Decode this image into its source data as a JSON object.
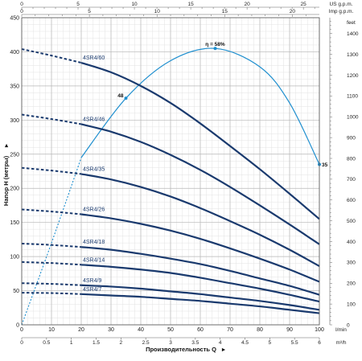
{
  "chart_data": {
    "type": "line",
    "xlabel": "Производительность Q",
    "ylabel": "Напор H (метры)",
    "x_unit_main": "l/min",
    "x_unit_m3h": "m³/h",
    "x_unit_us": "US g.p.m.",
    "x_unit_imp": "Imp g.p.m.",
    "y_unit_right": "feet",
    "xlim": [
      0,
      100
    ],
    "ylim": [
      0,
      450
    ],
    "x_ticks": [
      0,
      10,
      20,
      30,
      40,
      50,
      60,
      70,
      80,
      90,
      100
    ],
    "y_ticks": [
      0,
      50,
      100,
      150,
      200,
      250,
      300,
      350,
      400,
      450
    ],
    "m3h_ticks": [
      "0",
      "0.5",
      "1",
      "1.5",
      "2",
      "2.5",
      "3",
      "3.5",
      "4",
      "4.5",
      "5",
      "5.5",
      "6"
    ],
    "us_ticks": [
      "0",
      "5",
      "10",
      "15",
      "20",
      "25"
    ],
    "imp_ticks": [
      "0",
      "5",
      "10",
      "15",
      "20"
    ],
    "feet_ticks": [
      "0",
      "100",
      "200",
      "300",
      "400",
      "500",
      "600",
      "700",
      "800",
      "900",
      "1000",
      "1100",
      "1200",
      "1300",
      "1400"
    ],
    "grid": true,
    "series": [
      {
        "name": "4SR4/60",
        "h0": 404,
        "h20": 384,
        "q": [
          20,
          30,
          40,
          50,
          60,
          70,
          80,
          90,
          100
        ],
        "h": [
          384,
          370,
          350,
          325,
          295,
          262,
          228,
          192,
          155
        ]
      },
      {
        "name": "4SR4/46",
        "h0": 308,
        "h20": 294,
        "q": [
          20,
          30,
          40,
          50,
          60,
          70,
          80,
          90,
          100
        ],
        "h": [
          294,
          283,
          268,
          249,
          227,
          202,
          175,
          147,
          118
        ]
      },
      {
        "name": "4SR4/35",
        "h0": 230,
        "h20": 221,
        "q": [
          20,
          30,
          40,
          50,
          60,
          70,
          80,
          90,
          100
        ],
        "h": [
          221,
          213,
          202,
          188,
          171,
          152,
          132,
          110,
          86
        ]
      },
      {
        "name": "4SR4/26",
        "h0": 169,
        "h20": 162,
        "q": [
          20,
          30,
          40,
          50,
          60,
          70,
          80,
          90,
          100
        ],
        "h": [
          162,
          156,
          148,
          138,
          126,
          112,
          97,
          81,
          63
        ]
      },
      {
        "name": "4SR4/18",
        "h0": 119,
        "h20": 114,
        "q": [
          20,
          30,
          40,
          50,
          60,
          70,
          80,
          90,
          100
        ],
        "h": [
          114,
          110,
          104,
          97,
          89,
          79,
          68,
          57,
          44
        ]
      },
      {
        "name": "4SR4/14",
        "h0": 92,
        "h20": 88,
        "q": [
          20,
          30,
          40,
          50,
          60,
          70,
          80,
          90,
          100
        ],
        "h": [
          88,
          85,
          81,
          76,
          69,
          61,
          53,
          44,
          34
        ]
      },
      {
        "name": "4SR4/9",
        "h0": 61,
        "h20": 58,
        "q": [
          20,
          30,
          40,
          50,
          60,
          70,
          80,
          90,
          100
        ],
        "h": [
          58,
          56,
          53,
          49,
          45,
          40,
          35,
          29,
          22
        ]
      },
      {
        "name": "4SR4/7",
        "h0": 47,
        "h20": 45,
        "q": [
          20,
          30,
          40,
          50,
          60,
          70,
          80,
          90,
          100
        ],
        "h": [
          45,
          43,
          41,
          38,
          35,
          31,
          27,
          22,
          17
        ]
      }
    ],
    "efficiency": {
      "label": "η = 58%",
      "start_label": "48",
      "end_label": "35",
      "q": [
        0,
        10,
        20,
        35,
        50,
        65,
        80,
        90,
        100
      ],
      "eff_scale_h": [
        0,
        120,
        245,
        332,
        387,
        405,
        378,
        325,
        235
      ]
    },
    "colors": {
      "curve": "#1a3a6e",
      "efficiency": "#1f8fcf",
      "grid_major": "#b8b8b8",
      "grid_minor": "#e3e3e3"
    }
  }
}
